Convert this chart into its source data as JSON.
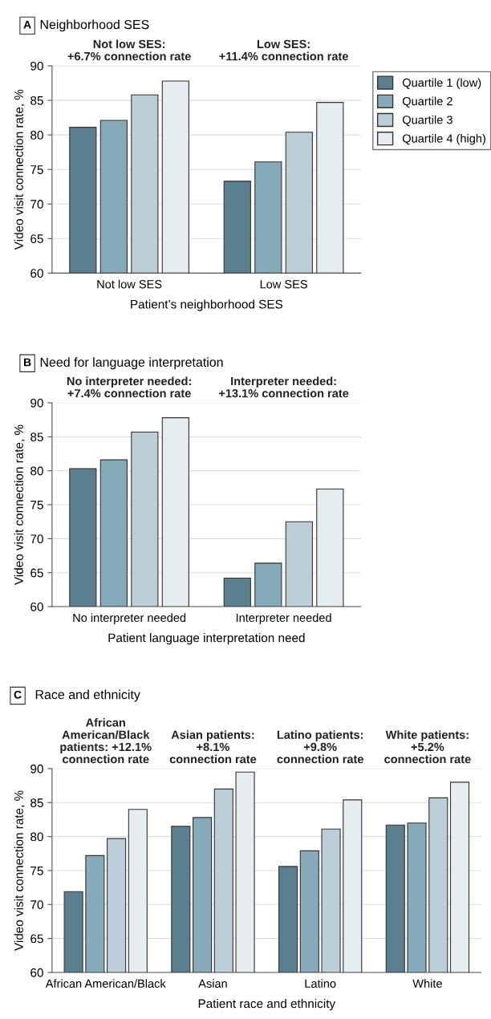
{
  "chart_data": [
    {
      "type": "bar",
      "title": "Neighborhood SES",
      "xlabel": "Patient’s neighborhood SES",
      "ylabel": "Video visit connection rate, %",
      "annotations": [
        "A",
        "Not low SES:\n+6.7% connection rate",
        "Low SES:\n+11.4% connection rate"
      ],
      "categories": [
        "Not low SES",
        "Low SES"
      ],
      "series": [
        {
          "name": "Quartile 1 (low)",
          "color": "#5b7f8e",
          "values": [
            81.1,
            73.3
          ]
        },
        {
          "name": "Quartile 2",
          "color": "#86aab8",
          "values": [
            82.1,
            76.1
          ]
        },
        {
          "name": "Quartile 3",
          "color": "#bccfd8",
          "values": [
            85.8,
            80.4
          ]
        },
        {
          "name": "Quartile 4 (high)",
          "color": "#e5edf0",
          "values": [
            87.8,
            84.7
          ]
        }
      ],
      "ylim": [
        60,
        90
      ],
      "yticks": [
        60,
        65,
        70,
        75,
        80,
        85,
        90
      ],
      "grid": "y",
      "legend": "top right"
    },
    {
      "type": "bar",
      "title": "Need for language interpretation",
      "xlabel": "Patient language interpretation need",
      "ylabel": "Video visit connection rate, %",
      "annotations": [
        "B",
        "No interpreter needed:\n+7.4% connection rate",
        "Interpreter needed:\n+13.1% connection rate"
      ],
      "categories": [
        "No interpreter needed",
        "Interpreter needed"
      ],
      "series": [
        {
          "color": "#5b7f8e",
          "values": [
            80.3,
            64.2
          ]
        },
        {
          "color": "#86aab8",
          "values": [
            81.6,
            66.4
          ]
        },
        {
          "color": "#bccfd8",
          "values": [
            85.7,
            72.5
          ]
        },
        {
          "color": "#e5edf0",
          "values": [
            87.8,
            77.3
          ]
        }
      ],
      "ylim": [
        60,
        90
      ],
      "yticks": [
        60,
        65,
        70,
        75,
        80,
        85,
        90
      ],
      "grid": "y"
    },
    {
      "type": "bar",
      "title": "Race and ethnicity",
      "xlabel": "Patient race and ethnicity",
      "ylabel": "Video visit connection rate, %",
      "annotations": [
        "C",
        "African\nAmerican/Black\npatients: +12.1%\nconnection rate",
        "Asian patients:\n+8.1%\nconnection rate",
        "Latino patients:\n+9.8%\nconnection rate",
        "White patients:\n+5.2%\nconnection rate"
      ],
      "categories": [
        "African American/Black",
        "Asian",
        "Latino",
        "White"
      ],
      "series": [
        {
          "color": "#5b7f8e",
          "values": [
            71.9,
            81.5,
            75.6,
            81.7
          ]
        },
        {
          "color": "#86aab8",
          "values": [
            77.2,
            82.8,
            77.9,
            82.0
          ]
        },
        {
          "color": "#bccfd8",
          "values": [
            79.7,
            87.0,
            81.1,
            85.7
          ]
        },
        {
          "color": "#e5edf0",
          "values": [
            84.0,
            89.5,
            85.4,
            88.0
          ]
        }
      ],
      "ylim": [
        60,
        90
      ],
      "yticks": [
        60,
        65,
        70,
        75,
        80,
        85,
        90
      ],
      "grid": "y"
    }
  ]
}
